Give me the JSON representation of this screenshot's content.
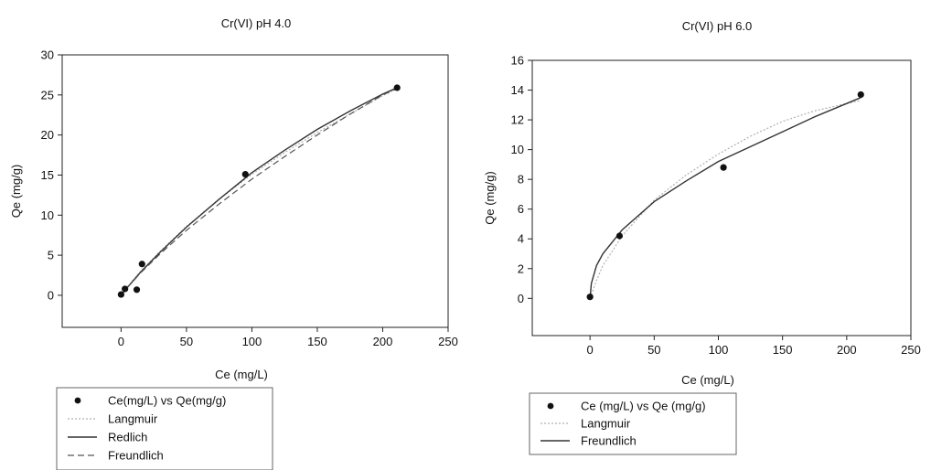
{
  "chart_data": [
    {
      "type": "scatter",
      "title": "Cr(VI) pH 4.0",
      "xlabel": "Ce (mg/L)",
      "ylabel": "Qe (mg/g)",
      "xlim": [
        -45,
        250
      ],
      "ylim": [
        -4,
        30
      ],
      "xticks": [
        0,
        50,
        100,
        150,
        200,
        250
      ],
      "yticks": [
        0,
        5,
        10,
        15,
        20,
        25,
        30
      ],
      "grid": false,
      "legend": "below",
      "points": {
        "name": "Ce(mg/L) vs Qe(mg/g)",
        "x": [
          0,
          3,
          12,
          16,
          95,
          211
        ],
        "y": [
          0.1,
          0.8,
          0.7,
          3.9,
          15.1,
          25.9
        ]
      },
      "series": [
        {
          "name": "Langmuir",
          "style": "dotted",
          "color": "#b0b0b0",
          "x": [
            0,
            5,
            15,
            30,
            50,
            75,
            100,
            125,
            150,
            175,
            200,
            211
          ],
          "y": [
            0,
            1.1,
            3.0,
            5.5,
            8.6,
            12.0,
            15.1,
            17.8,
            20.3,
            22.6,
            24.9,
            25.8
          ]
        },
        {
          "name": "Redlich",
          "style": "solid",
          "color": "#333333",
          "x": [
            0,
            5,
            15,
            30,
            50,
            75,
            100,
            125,
            150,
            175,
            200,
            211
          ],
          "y": [
            0,
            1.0,
            2.9,
            5.4,
            8.5,
            12.0,
            15.3,
            18.1,
            20.7,
            23.0,
            25.1,
            25.9
          ]
        },
        {
          "name": "Freundlich",
          "style": "dashed",
          "color": "#555555",
          "x": [
            0,
            5,
            15,
            30,
            50,
            75,
            100,
            125,
            150,
            175,
            200,
            211
          ],
          "y": [
            0,
            1.0,
            2.8,
            5.2,
            8.1,
            11.4,
            14.5,
            17.3,
            20.0,
            22.6,
            25.0,
            25.8
          ]
        }
      ]
    },
    {
      "type": "scatter",
      "title": "Cr(VI) pH 6.0",
      "xlabel": "Ce (mg/L)",
      "ylabel": "Qe (mg/g)",
      "xlim": [
        -45,
        250
      ],
      "ylim": [
        -2.5,
        16
      ],
      "xticks": [
        0,
        50,
        100,
        150,
        200,
        250
      ],
      "yticks": [
        0,
        2,
        4,
        6,
        8,
        10,
        12,
        14,
        16
      ],
      "grid": false,
      "legend": "below",
      "points": {
        "name": "Ce (mg/L) vs Qe (mg/g)",
        "x": [
          0,
          23,
          104,
          211
        ],
        "y": [
          0.1,
          4.2,
          8.8,
          13.7
        ]
      },
      "series": [
        {
          "name": "Langmuir",
          "style": "dotted",
          "color": "#b0b0b0",
          "x": [
            0,
            5,
            10,
            25,
            50,
            75,
            100,
            125,
            150,
            175,
            200,
            211
          ],
          "y": [
            0,
            1.2,
            2.2,
            4.2,
            6.6,
            8.3,
            9.7,
            10.9,
            11.9,
            12.6,
            13.1,
            13.3
          ]
        },
        {
          "name": "Freundlich",
          "style": "solid",
          "color": "#333333",
          "x": [
            0,
            1,
            5,
            10,
            25,
            50,
            75,
            100,
            125,
            150,
            175,
            200,
            211
          ],
          "y": [
            0,
            1.0,
            2.2,
            3.0,
            4.6,
            6.5,
            7.9,
            9.2,
            10.2,
            11.2,
            12.2,
            13.1,
            13.5
          ]
        }
      ]
    }
  ]
}
